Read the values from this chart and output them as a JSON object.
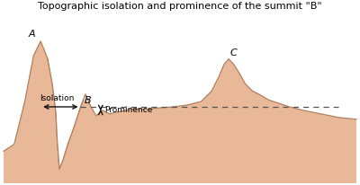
{
  "title": "Topographic isolation and prominence of the summit \"B\"",
  "terrain_color": "#e8b898",
  "terrain_edge_color": "#b08060",
  "background_color": "#ffffff",
  "label_A": "A",
  "label_B": "B",
  "label_C": "C",
  "label_isolation": "Isolation",
  "label_prominence": "Prominence",
  "dashed_line_color": "#555555",
  "arrow_color": "#111111",
  "terrain_x": [
    0.0,
    0.3,
    0.6,
    0.85,
    1.05,
    1.25,
    1.38,
    1.48,
    1.52,
    1.58,
    1.68,
    1.82,
    2.0,
    2.18,
    2.32,
    2.45,
    2.62,
    2.8,
    3.0,
    3.2,
    3.45,
    3.7,
    4.0,
    4.4,
    4.8,
    5.2,
    5.6,
    5.9,
    6.1,
    6.25,
    6.38,
    6.52,
    6.68,
    6.85,
    7.05,
    7.25,
    7.5,
    7.8,
    8.1,
    8.5,
    9.0,
    9.5,
    10.0
  ],
  "terrain_y": [
    0.4,
    0.6,
    1.8,
    3.1,
    3.5,
    3.0,
    2.3,
    1.5,
    0.7,
    -0.1,
    0.15,
    0.6,
    1.1,
    1.65,
    2.0,
    1.7,
    1.4,
    1.55,
    1.45,
    1.5,
    1.55,
    1.6,
    1.58,
    1.62,
    1.65,
    1.7,
    1.8,
    2.1,
    2.5,
    2.85,
    3.0,
    2.85,
    2.6,
    2.3,
    2.1,
    2.0,
    1.85,
    1.75,
    1.65,
    1.55,
    1.45,
    1.35,
    1.3
  ],
  "white_valley_x": [
    1.25,
    1.38,
    1.48,
    1.52,
    1.58,
    1.68,
    1.82,
    2.0,
    2.18,
    2.32,
    2.45
  ],
  "white_valley_y": [
    3.0,
    2.3,
    1.5,
    0.7,
    -0.1,
    0.15,
    0.6,
    1.1,
    1.65,
    2.0,
    1.7
  ],
  "peak_A_x": 1.05,
  "peak_A_y": 3.5,
  "peak_B_x": 2.18,
  "peak_B_y": 1.65,
  "peak_C_x": 6.32,
  "peak_C_y": 3.0,
  "isolation_start_x": 1.05,
  "isolation_end_x": 2.18,
  "isolation_y": 1.65,
  "prominence_x": 2.75,
  "prominence_top_y": 1.65,
  "prominence_bot_y": 1.47,
  "dashed_start_x": 2.18,
  "dashed_end_x": 9.5,
  "ylim_bottom": -0.5,
  "ylim_top": 4.3,
  "xlim_left": -0.05,
  "xlim_right": 10.05
}
